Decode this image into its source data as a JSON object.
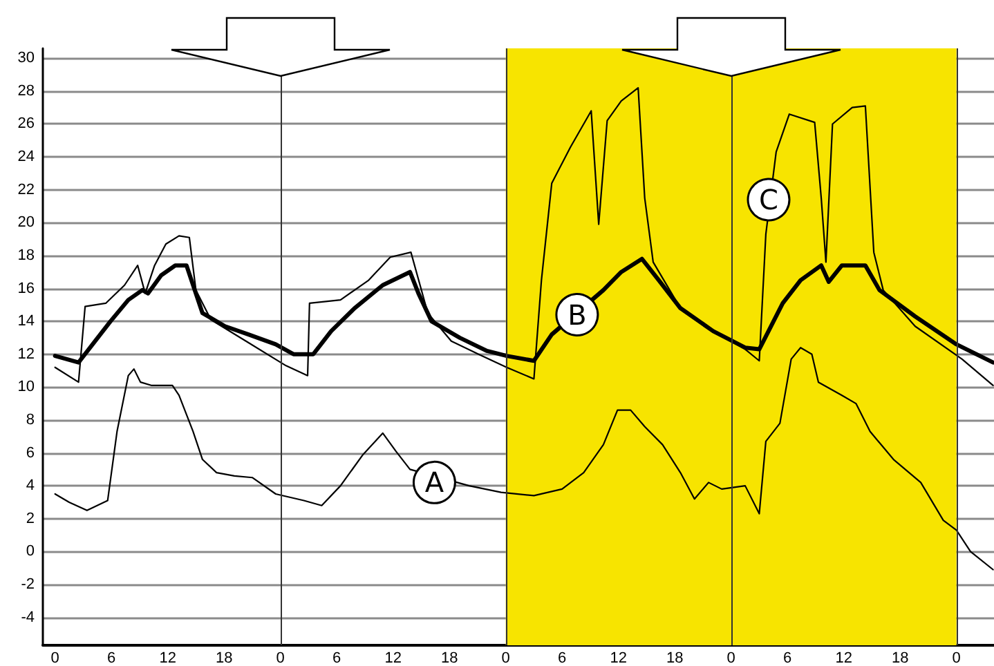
{
  "chart_data": {
    "type": "line",
    "xlim": [
      "--01-01T22:42",
      "--01-06T04:00"
    ],
    "ylim": [
      -5.7,
      30.6
    ],
    "xticks": [
      {
        "value": "--01-02T00:00",
        "label": "0"
      },
      {
        "value": "--01-02T06:00",
        "label": "6"
      },
      {
        "value": "--01-02T12:00",
        "label": "12"
      },
      {
        "value": "--01-02T18:00",
        "label": "18"
      },
      {
        "value": "--01-03T00:00",
        "label": "0"
      },
      {
        "value": "--01-03T06:00",
        "label": "6"
      },
      {
        "value": "--01-03T12:00",
        "label": "12"
      },
      {
        "value": "--01-03T18:00",
        "label": "18"
      },
      {
        "value": "--01-04T00:00",
        "label": "0"
      },
      {
        "value": "--01-04T06:00",
        "label": "6"
      },
      {
        "value": "--01-04T12:00",
        "label": "12"
      },
      {
        "value": "--01-04T18:00",
        "label": "18"
      },
      {
        "value": "--01-05T00:00",
        "label": "0"
      },
      {
        "value": "--01-05T06:00",
        "label": "6"
      },
      {
        "value": "--01-05T12:00",
        "label": "12"
      },
      {
        "value": "--01-05T18:00",
        "label": "18"
      },
      {
        "value": "--01-06T00:00",
        "label": "0"
      }
    ],
    "yticks": [
      -4,
      -2,
      0,
      2,
      4,
      6,
      8,
      10,
      12,
      14,
      16,
      18,
      20,
      22,
      24,
      26,
      28,
      30
    ],
    "grid": "y",
    "marker": "none",
    "line_style": "solid",
    "series": [
      {
        "color": "#000000",
        "x": [
          "--01-02T00:00",
          "--01-02T01:30",
          "--01-02T03:24",
          "--01-02T05:36",
          "--01-02T06:36",
          "--01-02T07:48",
          "--01-02T08:24",
          "--01-02T09:06",
          "--01-02T10:18",
          "--01-02T12:30",
          "--01-02T13:12",
          "--01-02T14:42",
          "--01-02T15:42",
          "--01-02T17:12",
          "--01-02T19:06",
          "--01-02T21:00",
          "--01-02T23:30",
          "--01-03T02:30",
          "--01-03T04:24",
          "--01-03T06:24",
          "--01-03T08:48",
          "--01-03T10:54",
          "--01-03T12:18",
          "--01-03T13:48",
          "--01-03T20:06",
          "--01-03T23:30",
          "--01-04T03:00",
          "--01-04T06:00",
          "--01-04T08:18",
          "--01-04T10:24",
          "--01-04T11:54",
          "--01-04T13:18",
          "--01-04T14:48",
          "--01-04T16:42",
          "--01-04T18:36",
          "--01-04T20:06",
          "--01-04T21:36",
          "--01-04T23:00",
          "--01-05T01:30",
          "--01-05T03:00",
          "--01-05T03:42",
          "--01-05T05:12",
          "--01-05T06:24",
          "--01-05T07:24",
          "--01-05T08:36",
          "--01-05T09:18",
          "--01-05T11:48",
          "--01-05T13:18",
          "--01-05T14:48",
          "--01-05T17:18",
          "--01-05T20:12",
          "--01-05T22:36",
          "--01-06T00:00",
          "--01-06T01:30",
          "--01-06T03:54"
        ],
        "values": [
          3.5,
          3.0,
          2.5,
          3.1,
          7.3,
          10.7,
          11.1,
          10.3,
          10.1,
          10.1,
          9.5,
          7.3,
          5.6,
          4.8,
          4.6,
          4.5,
          3.5,
          3.1,
          2.8,
          4.0,
          5.9,
          7.2,
          6.1,
          5.0,
          4.0,
          3.6,
          3.4,
          3.8,
          4.8,
          6.5,
          8.6,
          8.6,
          7.6,
          6.5,
          4.8,
          3.2,
          4.2,
          3.8,
          4.0,
          2.3,
          6.7,
          7.8,
          11.7,
          12.4,
          12.0,
          10.3,
          9.5,
          9.0,
          7.3,
          5.6,
          4.2,
          1.9,
          1.3,
          0.0,
          -1.1
        ]
      },
      {
        "color": "#000000",
        "x": [
          "--01-02T00:00",
          "--01-02T02:30",
          "--01-02T04:00",
          "--01-02T05:54",
          "--01-02T07:48",
          "--01-02T09:18",
          "--01-02T09:54",
          "--01-02T11:18",
          "--01-02T12:48",
          "--01-02T14:00",
          "--01-02T14:42",
          "--01-02T15:42",
          "--01-02T18:06",
          "--01-02T20:36",
          "--01-02T23:30",
          "--01-03T01:24",
          "--01-03T03:30",
          "--01-03T05:24",
          "--01-03T07:54",
          "--01-03T10:54",
          "--01-03T13:48",
          "--01-03T14:42",
          "--01-03T16:06",
          "--01-03T19:06",
          "--01-03T22:00",
          "--01-04T00:06",
          "--01-04T03:00",
          "--01-04T04:54",
          "--01-04T10:24",
          "--01-04T12:18",
          "--01-04T14:30",
          "--01-04T16:18",
          "--01-04T18:36",
          "--01-04T22:06",
          "--01-05T01:30",
          "--01-05T03:00",
          "--01-05T05:30",
          "--01-05T07:24",
          "--01-05T09:36",
          "--01-05T10:24",
          "--01-05T11:48",
          "--01-05T14:18",
          "--01-05T15:48",
          "--01-05T19:36",
          "--01-06T00:00",
          "--01-06T03:54"
        ],
        "values": [
          11.9,
          11.5,
          12.6,
          14.0,
          15.3,
          15.9,
          15.7,
          16.8,
          17.4,
          17.4,
          16.2,
          14.5,
          13.7,
          13.2,
          12.6,
          12.0,
          12.0,
          13.4,
          14.8,
          16.2,
          17.0,
          15.7,
          14.0,
          13.0,
          12.2,
          11.9,
          11.6,
          13.2,
          15.9,
          17.0,
          17.8,
          16.5,
          14.8,
          13.4,
          12.4,
          12.3,
          15.1,
          16.5,
          17.4,
          16.4,
          17.4,
          17.4,
          15.9,
          14.3,
          12.6,
          11.5
        ]
      },
      {
        "color": "#000000",
        "x": [
          "--01-02T00:00",
          "--01-02T02:30",
          "--01-02T03:12",
          "--01-02T05:24",
          "--01-02T07:24",
          "--01-02T08:48",
          "--01-02T09:36",
          "--01-02T10:36",
          "--01-02T11:48",
          "--01-02T13:12",
          "--01-02T14:18",
          "--01-02T15:00",
          "--01-02T16:36",
          "--01-02T20:36",
          "--01-03T00:36",
          "--01-03T02:54",
          "--01-03T03:06",
          "--01-03T06:24",
          "--01-03T09:24",
          "--01-03T11:42",
          "--01-03T13:54",
          "--01-03T15:42",
          "--01-03T18:12",
          "--01-03T21:06",
          "--01-04T00:06",
          "--01-04T03:00",
          "--01-04T03:48",
          "--01-04T04:54",
          "--01-04T06:54",
          "--01-04T09:06",
          "--01-04T09:54",
          "--01-04T10:48",
          "--01-04T12:18",
          "--01-04T14:06",
          "--01-04T14:48",
          "--01-04T15:42",
          "--01-04T18:36",
          "--01-04T22:06",
          "--01-05T01:30",
          "--01-05T03:00",
          "--01-05T03:42",
          "--01-05T04:48",
          "--01-05T06:12",
          "--01-05T08:54",
          "--01-05T09:36",
          "--01-05T10:06",
          "--01-05T10:48",
          "--01-05T12:54",
          "--01-05T14:18",
          "--01-05T15:12",
          "--01-05T16:12",
          "--01-05T19:36",
          "--01-06T00:36",
          "--01-06T03:54"
        ],
        "values": [
          11.2,
          10.3,
          14.9,
          15.1,
          16.2,
          17.4,
          15.7,
          17.4,
          18.7,
          19.2,
          19.1,
          15.9,
          14.1,
          12.7,
          11.3,
          10.7,
          15.1,
          15.3,
          16.5,
          17.9,
          18.2,
          14.5,
          12.8,
          12.0,
          11.2,
          10.5,
          16.5,
          22.4,
          24.6,
          26.8,
          19.9,
          26.2,
          27.4,
          28.2,
          21.5,
          17.6,
          14.8,
          13.4,
          12.3,
          11.6,
          19.3,
          24.3,
          26.6,
          26.1,
          21.5,
          17.6,
          26.0,
          27.0,
          27.1,
          18.2,
          15.9,
          13.7,
          11.7,
          10.1
        ]
      }
    ],
    "bands": [
      {
        "axis": "x",
        "from": "--01-04T00:00",
        "to": "--01-06T00:00",
        "color": "#f7e400"
      }
    ],
    "ref_lines": [
      {
        "axis": "x",
        "value": "--01-03T00:00",
        "color": "#333333"
      },
      {
        "axis": "x",
        "value": "--01-04T00:00",
        "color": "#333333"
      },
      {
        "axis": "x",
        "value": "--01-05T00:00",
        "color": "#333333"
      },
      {
        "axis": "x",
        "value": "--01-06T00:00",
        "color": "#333333"
      }
    ],
    "annotations": [
      {
        "text": "A",
        "x": "--01-03T16:24",
        "y": 4.2
      },
      {
        "text": "B",
        "x": "--01-04T07:36",
        "y": 14.4
      },
      {
        "text": "C",
        "x": "--01-05T04:00",
        "y": 21.4
      }
    ]
  }
}
